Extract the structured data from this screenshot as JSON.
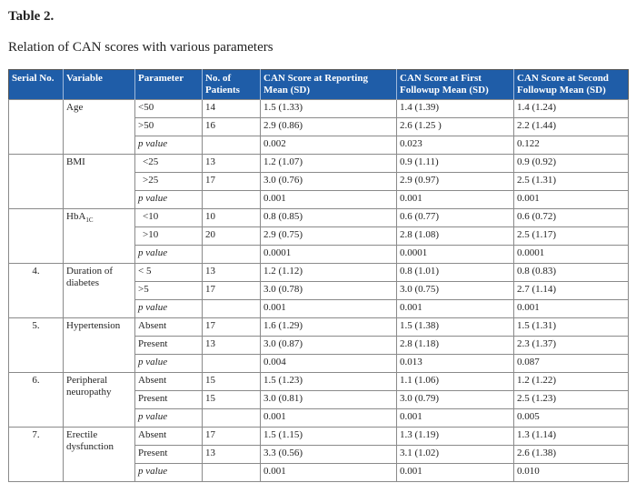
{
  "title": "Table 2.",
  "caption": "Relation of CAN scores with various parameters",
  "columns": [
    "Serial No.",
    "Variable",
    "Parameter",
    "No. of Patients",
    "CAN Score at Reporting Mean (SD)",
    "CAN Score at First Followup Mean (SD)",
    "CAN Score at Second Followup Mean (SD)"
  ],
  "groups": [
    {
      "serial": "",
      "variable": "Age",
      "rows": [
        {
          "parameter": "<50",
          "patients": "14",
          "reporting": "1.5 (1.33)",
          "first": "1.4 (1.39)",
          "second": "1.4 (1.24)"
        },
        {
          "parameter": ">50",
          "patients": "16",
          "reporting": "2.9 (0.86)",
          "first": "2.6 (1.25 )",
          "second": "2.2 (1.44)"
        },
        {
          "parameter": "p value",
          "patients": "",
          "reporting": "0.002",
          "first": "0.023",
          "second": "0.122"
        }
      ]
    },
    {
      "serial": "",
      "variable": "BMI",
      "rows": [
        {
          "parameter": "<25",
          "patients": "13",
          "reporting": "1.2 (1.07)",
          "first": "0.9 (1.11)",
          "second": "0.9 (0.92)"
        },
        {
          "parameter": ">25",
          "patients": "17",
          "reporting": "3.0 (0.76)",
          "first": "2.9 (0.97)",
          "second": "2.5 (1.31)"
        },
        {
          "parameter": "p value",
          "patients": "",
          "reporting": "0.001",
          "first": "0.001",
          "second": "0.001"
        }
      ]
    },
    {
      "serial": "",
      "variable": "HbA",
      "variable_sub": "1C",
      "rows": [
        {
          "parameter": "<10",
          "patients": "10",
          "reporting": "0.8 (0.85)",
          "first": "0.6 (0.77)",
          "second": "0.6 (0.72)"
        },
        {
          "parameter": ">10",
          "patients": "20",
          "reporting": "2.9 (0.75)",
          "first": "2.8 (1.08)",
          "second": "2.5 (1.17)"
        },
        {
          "parameter": "p value",
          "patients": "",
          "reporting": "0.0001",
          "first": "0.0001",
          "second": "0.0001"
        }
      ]
    },
    {
      "serial": "4.",
      "variable": "Duration of diabetes",
      "rows": [
        {
          "parameter": "< 5",
          "patients": "13",
          "reporting": "1.2 (1.12)",
          "first": "0.8 (1.01)",
          "second": "0.8 (0.83)"
        },
        {
          "parameter": ">5",
          "patients": "17",
          "reporting": "3.0 (0.78)",
          "first": "3.0 (0.75)",
          "second": "2.7 (1.14)"
        },
        {
          "parameter": "p value",
          "patients": "",
          "reporting": "0.001",
          "first": "0.001",
          "second": "0.001"
        }
      ]
    },
    {
      "serial": "5.",
      "variable": "Hypertension",
      "rows": [
        {
          "parameter": "Absent",
          "patients": "17",
          "reporting": "1.6 (1.29)",
          "first": "1.5 (1.38)",
          "second": "1.5 (1.31)"
        },
        {
          "parameter": "Present",
          "patients": "13",
          "reporting": "3.0 (0.87)",
          "first": "2.8 (1.18)",
          "second": "2.3 (1.37)"
        },
        {
          "parameter": "p value",
          "patients": "",
          "reporting": "0.004",
          "first": "0.013",
          "second": "0.087"
        }
      ]
    },
    {
      "serial": "6.",
      "variable": "Peripheral neuropathy",
      "rows": [
        {
          "parameter": "Absent",
          "patients": "15",
          "reporting": "1.5 (1.23)",
          "first": "1.1 (1.06)",
          "second": "1.2 (1.22)"
        },
        {
          "parameter": "Present",
          "patients": "15",
          "reporting": "3.0 (0.81)",
          "first": "3.0 (0.79)",
          "second": "2.5 (1.23)"
        },
        {
          "parameter": "p value",
          "patients": "",
          "reporting": "0.001",
          "first": "0.001",
          "second": "0.005"
        }
      ]
    },
    {
      "serial": "7.",
      "variable": "Erectile dysfunction",
      "rows": [
        {
          "parameter": "Absent",
          "patients": "17",
          "reporting": "1.5 (1.15)",
          "first": "1.3 (1.19)",
          "second": "1.3 (1.14)"
        },
        {
          "parameter": "Present",
          "patients": "13",
          "reporting": "3.3 (0.56)",
          "first": "3.1 (1.02)",
          "second": "2.6 (1.38)"
        },
        {
          "parameter": "p value",
          "patients": "",
          "reporting": "0.001",
          "first": "0.001",
          "second": "0.010"
        }
      ]
    }
  ],
  "colors": {
    "header_background": "#1f5da8",
    "header_text": "#ffffff",
    "grid_line": "#8a8a8a"
  }
}
